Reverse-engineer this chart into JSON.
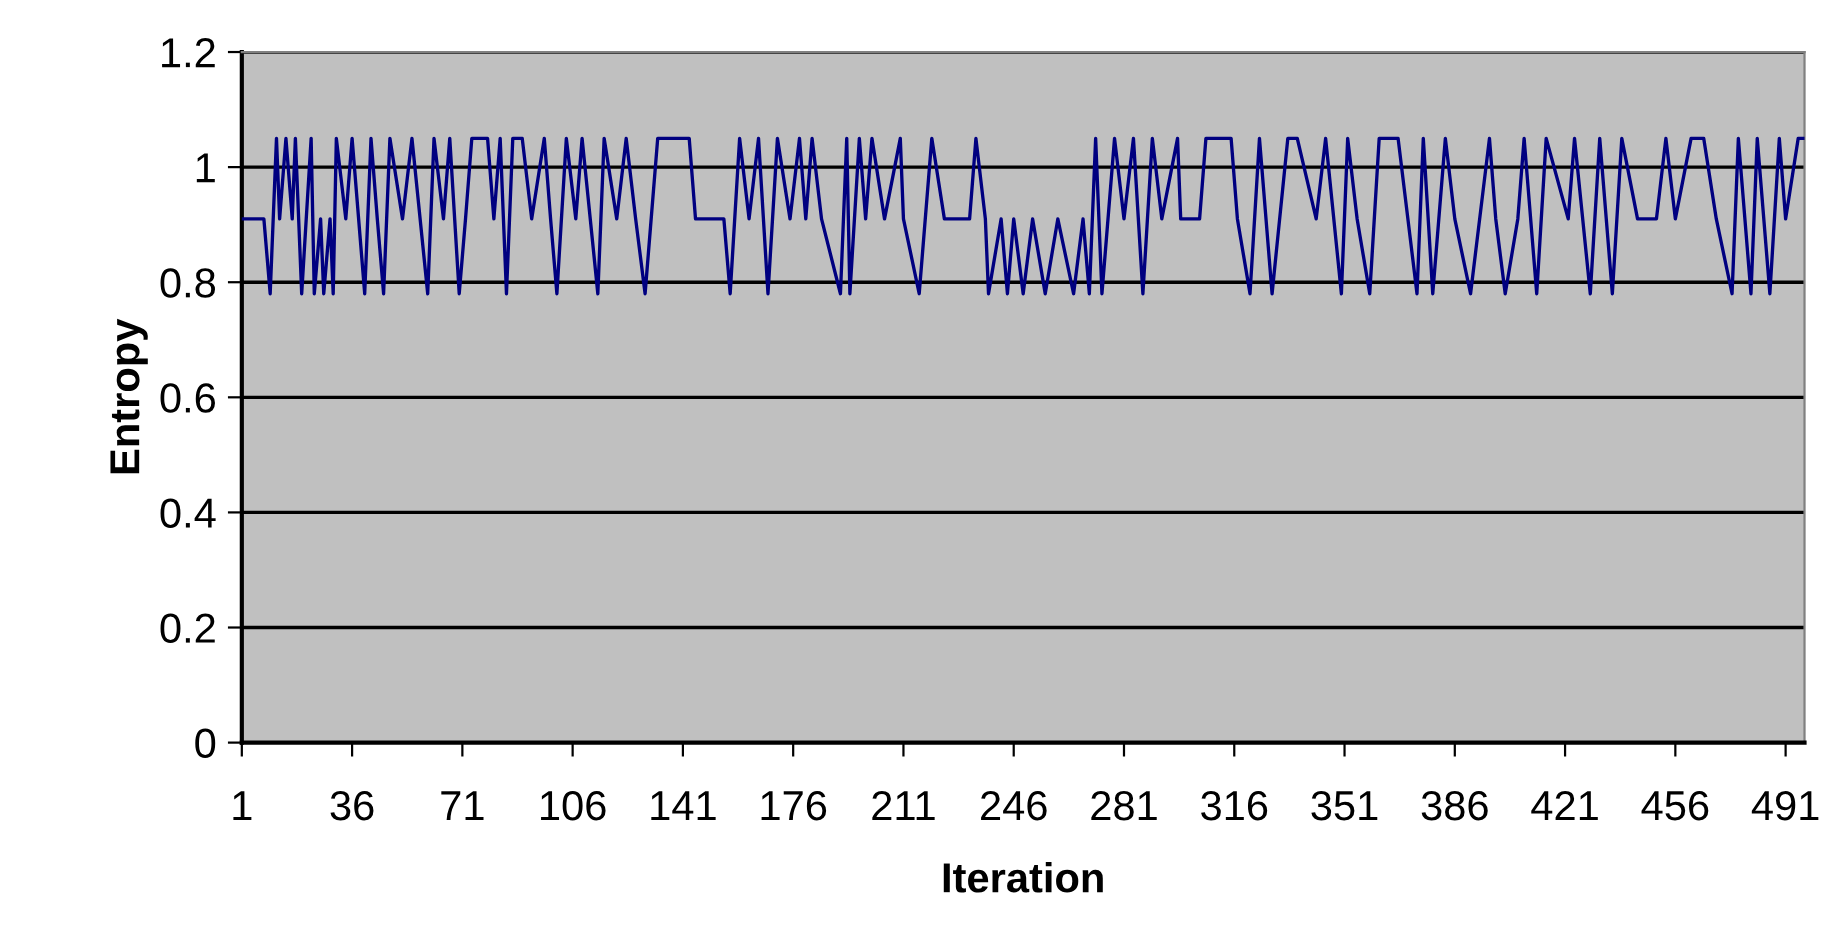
{
  "chart_data": {
    "type": "line",
    "xlabel": "Iteration",
    "ylabel": "Entropy",
    "x": [
      1,
      8,
      10,
      12,
      13,
      15,
      17,
      18,
      20,
      23,
      24,
      26,
      27,
      29,
      30,
      31,
      34,
      36,
      40,
      42,
      44,
      46,
      48,
      52,
      55,
      60,
      62,
      65,
      67,
      70,
      72,
      74,
      79,
      81,
      83,
      85,
      87,
      90,
      93,
      97,
      99,
      101,
      104,
      107,
      109,
      114,
      116,
      120,
      123,
      126,
      129,
      133,
      143,
      145,
      154,
      156,
      159,
      162,
      165,
      168,
      171,
      175,
      178,
      180,
      182,
      185,
      191,
      193,
      194,
      197,
      199,
      201,
      205,
      210,
      211,
      216,
      220,
      224,
      232,
      234,
      237,
      238,
      242,
      244,
      246,
      249,
      252,
      256,
      260,
      265,
      268,
      270,
      272,
      274,
      278,
      281,
      284,
      287,
      290,
      293,
      298,
      299,
      305,
      307,
      315,
      317,
      321,
      324,
      328,
      333,
      336,
      342,
      345,
      350,
      352,
      355,
      359,
      362,
      368,
      374,
      376,
      379,
      383,
      386,
      391,
      397,
      399,
      402,
      406,
      408,
      412,
      415,
      422,
      424,
      429,
      432,
      436,
      439,
      444,
      450,
      453,
      456,
      461,
      465,
      469,
      474,
      476,
      480,
      482,
      486,
      489,
      491,
      495,
      497
    ],
    "values": [
      0.91,
      0.91,
      0.78,
      1.05,
      0.91,
      1.05,
      0.91,
      1.05,
      0.78,
      1.05,
      0.78,
      0.91,
      0.78,
      0.91,
      0.78,
      1.05,
      0.91,
      1.05,
      0.78,
      1.05,
      0.91,
      0.78,
      1.05,
      0.91,
      1.05,
      0.78,
      1.05,
      0.91,
      1.05,
      0.78,
      0.91,
      1.05,
      1.05,
      0.91,
      1.05,
      0.78,
      1.05,
      1.05,
      0.91,
      1.05,
      0.91,
      0.78,
      1.05,
      0.91,
      1.05,
      0.78,
      1.05,
      0.91,
      1.05,
      0.91,
      0.78,
      1.05,
      1.05,
      0.91,
      0.91,
      0.78,
      1.05,
      0.91,
      1.05,
      0.78,
      1.05,
      0.91,
      1.05,
      0.91,
      1.05,
      0.91,
      0.78,
      1.05,
      0.78,
      1.05,
      0.91,
      1.05,
      0.91,
      1.05,
      0.91,
      0.78,
      1.05,
      0.91,
      0.91,
      1.05,
      0.91,
      0.78,
      0.91,
      0.78,
      0.91,
      0.78,
      0.91,
      0.78,
      0.91,
      0.78,
      0.91,
      0.78,
      1.05,
      0.78,
      1.05,
      0.91,
      1.05,
      0.78,
      1.05,
      0.91,
      1.05,
      0.91,
      0.91,
      1.05,
      1.05,
      0.91,
      0.78,
      1.05,
      0.78,
      1.05,
      1.05,
      0.91,
      1.05,
      0.78,
      1.05,
      0.91,
      0.78,
      1.05,
      1.05,
      0.78,
      1.05,
      0.78,
      1.05,
      0.91,
      0.78,
      1.05,
      0.91,
      0.78,
      0.91,
      1.05,
      0.78,
      1.05,
      0.91,
      1.05,
      0.78,
      1.05,
      0.78,
      1.05,
      0.91,
      0.91,
      1.05,
      0.91,
      1.05,
      1.05,
      0.91,
      0.78,
      1.05,
      0.78,
      1.05,
      0.78,
      1.05,
      0.91,
      1.05,
      1.05
    ],
    "color": "#000080",
    "xlim": [
      1,
      497
    ],
    "xticks": [
      1,
      36,
      71,
      106,
      141,
      176,
      211,
      246,
      281,
      316,
      351,
      386,
      421,
      456,
      491
    ],
    "ylim": [
      0,
      1.2
    ],
    "yticks": [
      0,
      0.2,
      0.4,
      0.6,
      0.8,
      1,
      1.2
    ],
    "grid": "y",
    "legend": false,
    "marker": "none",
    "line_style": "solid"
  }
}
